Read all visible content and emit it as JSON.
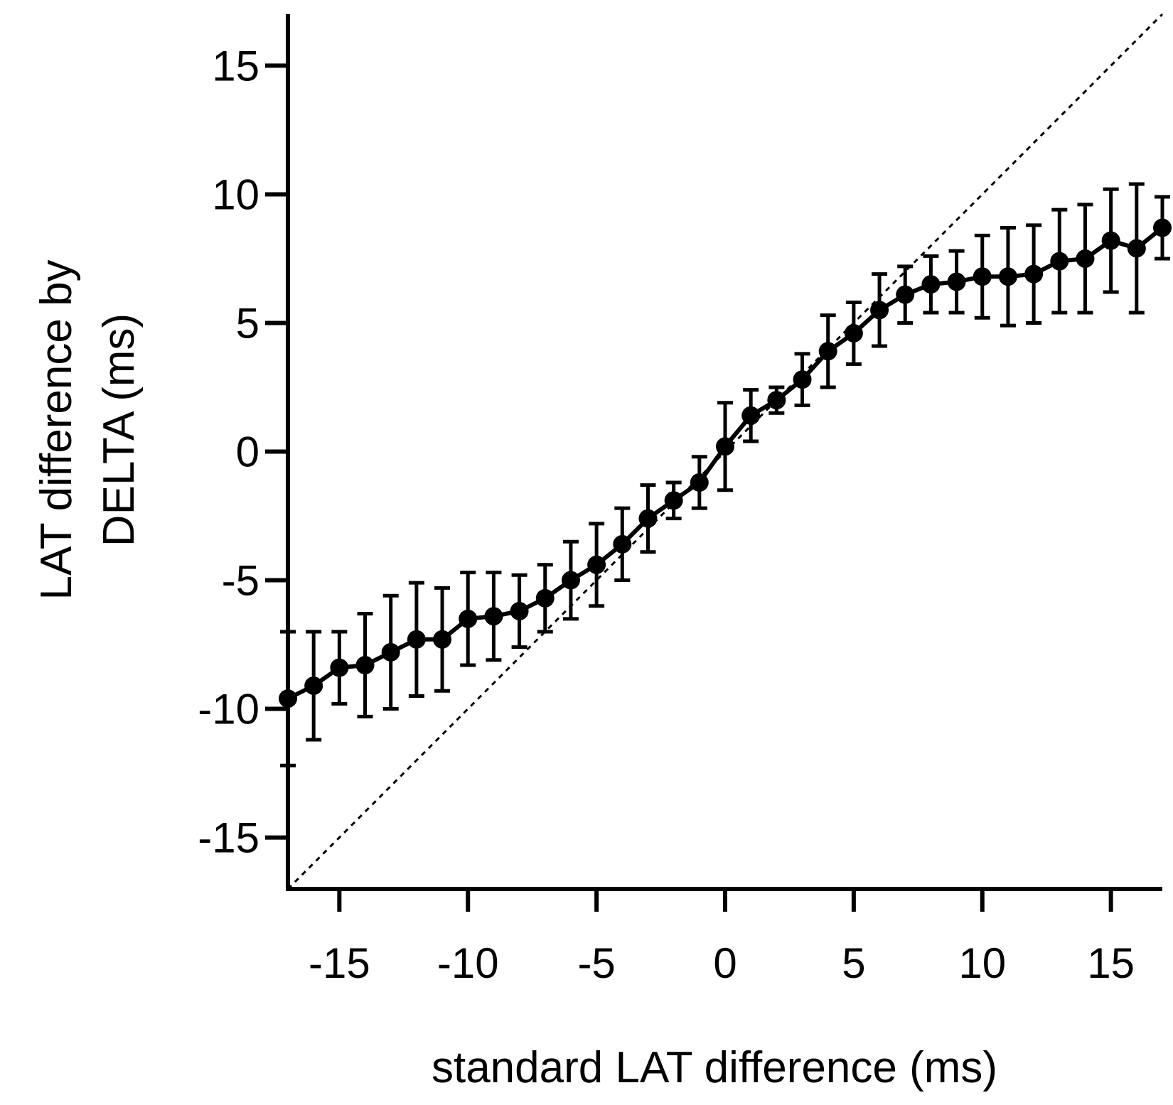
{
  "chart_data": {
    "type": "line",
    "title": "",
    "xlabel": "standard LAT difference (ms)",
    "ylabel_lines": [
      "LAT difference by",
      "DELTA (ms)"
    ],
    "xlim": [
      -17,
      17
    ],
    "ylim": [
      -17,
      17
    ],
    "xticks": [
      -15,
      -10,
      -5,
      0,
      5,
      10,
      15
    ],
    "yticks": [
      -15,
      -10,
      -5,
      0,
      5,
      10,
      15
    ],
    "xtick_labels": [
      "-15",
      "-10",
      "-5",
      "0",
      "5",
      "10",
      "15"
    ],
    "ytick_labels": [
      "-15",
      "-10",
      "-5",
      "0",
      "5",
      "10",
      "15"
    ],
    "reference_line": {
      "type": "identity",
      "style": "dotted",
      "x": [
        -17,
        17
      ],
      "y": [
        -17,
        17
      ]
    },
    "series": [
      {
        "name": "LAT difference by DELTA",
        "x": [
          -17,
          -16,
          -15,
          -14,
          -13,
          -12,
          -11,
          -10,
          -9,
          -8,
          -7,
          -6,
          -5,
          -4,
          -3,
          -2,
          -1,
          0,
          1,
          2,
          3,
          4,
          5,
          6,
          7,
          8,
          9,
          10,
          11,
          12,
          13,
          14,
          15,
          16,
          17
        ],
        "y": [
          -9.6,
          -9.1,
          -8.4,
          -8.3,
          -7.8,
          -7.3,
          -7.3,
          -6.5,
          -6.4,
          -6.2,
          -5.7,
          -5.0,
          -4.4,
          -3.6,
          -2.6,
          -1.9,
          -1.2,
          0.2,
          1.4,
          2.0,
          2.8,
          3.9,
          4.6,
          5.5,
          6.1,
          6.5,
          6.6,
          6.8,
          6.8,
          6.9,
          7.4,
          7.5,
          8.2,
          7.9,
          8.7
        ],
        "err": [
          2.6,
          2.1,
          1.4,
          2.0,
          2.2,
          2.2,
          2.0,
          1.8,
          1.7,
          1.4,
          1.3,
          1.5,
          1.6,
          1.4,
          1.3,
          0.7,
          1.0,
          1.7,
          1.0,
          0.5,
          1.0,
          1.4,
          1.2,
          1.4,
          1.1,
          1.1,
          1.2,
          1.6,
          1.9,
          1.9,
          2.0,
          2.1,
          2.0,
          2.5,
          1.2
        ]
      }
    ]
  },
  "colors": {
    "line": "#000000",
    "background": "#ffffff"
  }
}
